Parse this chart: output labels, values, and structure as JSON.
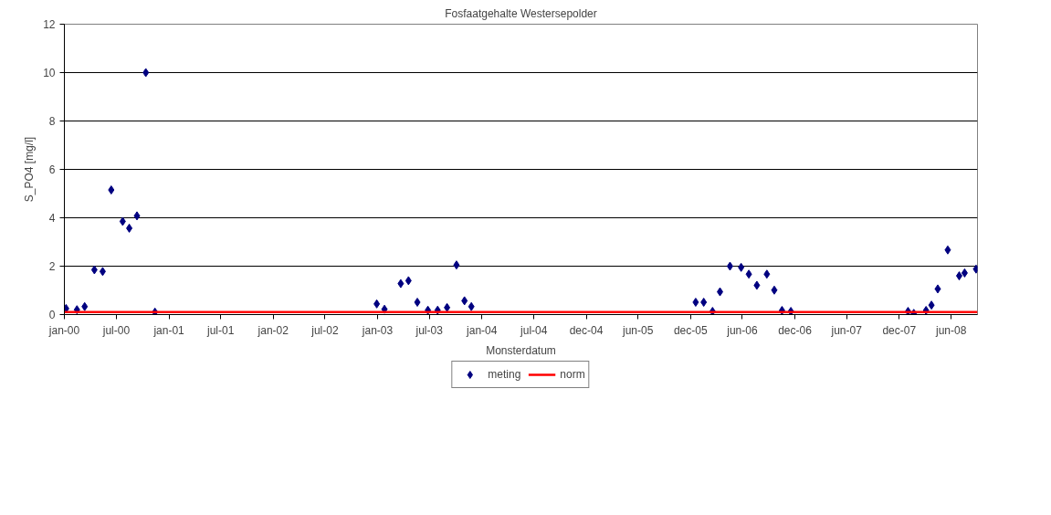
{
  "chart_data": {
    "type": "scatter",
    "title": "Fosfaatgehalte Westersepolder",
    "xlabel": "Monsterdatum",
    "ylabel": "S_PO4 [mg/l]",
    "xlim": [
      "2000-01-01",
      "2008-09-30"
    ],
    "xticks": [
      {
        "value": "2000-01-01",
        "label": "jan-00"
      },
      {
        "value": "2000-07-01",
        "label": "jul-00"
      },
      {
        "value": "2001-01-01",
        "label": "jan-01"
      },
      {
        "value": "2001-07-01",
        "label": "jul-01"
      },
      {
        "value": "2002-01-01",
        "label": "jan-02"
      },
      {
        "value": "2002-07-01",
        "label": "jul-02"
      },
      {
        "value": "2003-01-01",
        "label": "jan-03"
      },
      {
        "value": "2003-07-01",
        "label": "jul-03"
      },
      {
        "value": "2004-01-01",
        "label": "jan-04"
      },
      {
        "value": "2004-07-01",
        "label": "jul-04"
      },
      {
        "value": "2004-12-31",
        "label": "dec-04"
      },
      {
        "value": "2005-06-30",
        "label": "jun-05"
      },
      {
        "value": "2005-12-31",
        "label": "dec-05"
      },
      {
        "value": "2006-06-30",
        "label": "jun-06"
      },
      {
        "value": "2006-12-31",
        "label": "dec-06"
      },
      {
        "value": "2007-06-30",
        "label": "jun-07"
      },
      {
        "value": "2007-12-31",
        "label": "dec-07"
      },
      {
        "value": "2008-06-30",
        "label": "jun-08"
      }
    ],
    "ylim": [
      0,
      12
    ],
    "yticks": [
      0,
      2,
      4,
      6,
      8,
      10,
      12
    ],
    "grid": "y",
    "legend": "bottom",
    "series": [
      {
        "name": "meting",
        "marker": "diamond",
        "color": "#000080",
        "x": [
          "2000-01-07",
          "2000-02-14",
          "2000-03-12",
          "2000-04-15",
          "2000-05-14",
          "2000-06-13",
          "2000-07-23",
          "2000-08-15",
          "2000-09-11",
          "2000-10-12",
          "2000-11-13",
          "2002-12-29",
          "2003-01-25",
          "2003-03-23",
          "2003-04-19",
          "2003-05-20",
          "2003-06-26",
          "2003-07-30",
          "2003-09-01",
          "2003-10-04",
          "2003-11-01",
          "2003-11-25",
          "2006-01-18",
          "2006-02-15",
          "2006-03-18",
          "2006-04-13",
          "2006-05-18",
          "2006-06-26",
          "2006-07-23",
          "2006-08-20",
          "2006-09-24",
          "2006-10-20",
          "2006-11-16",
          "2006-12-17",
          "2008-01-31",
          "2008-02-20",
          "2008-04-03",
          "2008-04-22",
          "2008-05-14",
          "2008-06-18",
          "2008-07-28",
          "2008-08-16",
          "2008-09-25"
        ],
        "values": [
          0.25,
          0.2,
          0.33,
          1.85,
          1.78,
          5.15,
          3.85,
          3.57,
          4.08,
          10,
          0.1,
          0.44,
          0.22,
          1.28,
          1.4,
          0.51,
          0.18,
          0.18,
          0.29,
          2.05,
          0.57,
          0.33,
          0.51,
          0.51,
          0.13,
          0.94,
          2.0,
          1.95,
          1.67,
          1.21,
          1.67,
          1.01,
          0.17,
          0.13,
          0.13,
          0.05,
          0.17,
          0.39,
          1.06,
          2.67,
          1.6,
          1.72,
          1.88
        ]
      },
      {
        "name": "norm",
        "type": "line",
        "color": "#ff0000",
        "line_style": "solid",
        "x": [
          "2000-01-01",
          "2008-09-30"
        ],
        "values": [
          0.1,
          0.1
        ]
      }
    ]
  }
}
